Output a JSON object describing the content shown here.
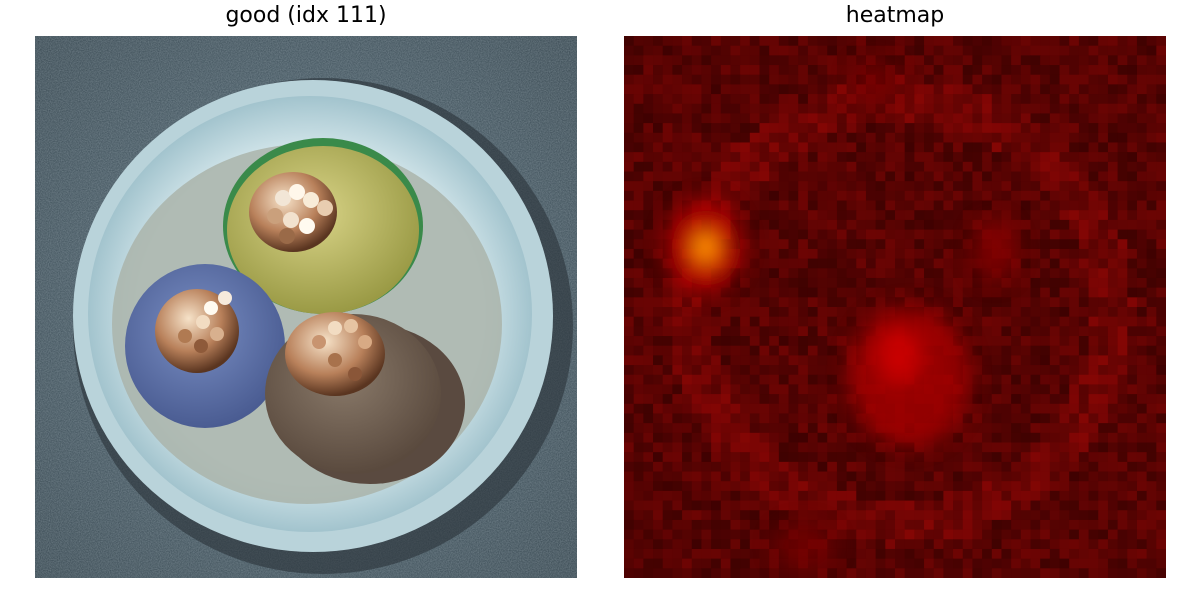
{
  "panels": [
    {
      "title": "good (idx 111)",
      "content": "photo of a cable cross-section with three insulated copper-strand conductors (yellow-green, blue, brown) inside a white sheath on a grey background"
    },
    {
      "title": "heatmap",
      "content": "dark red anomaly heatmap with a bright hotspot on the left and a red region near the centre"
    }
  ],
  "colors": {
    "background": "#ffffff",
    "title_text": "#000000",
    "heat_low": "#140000",
    "heat_mid": "#b00000",
    "heat_high": "#ffb000"
  }
}
